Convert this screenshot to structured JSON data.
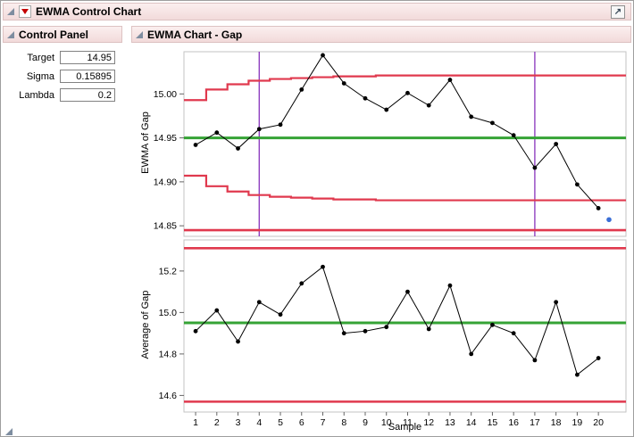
{
  "window": {
    "title": "EWMA Control Chart"
  },
  "icons": {
    "disclosure": "open-triangle",
    "red_triangle_menu": "red-down-triangle",
    "corner_arrow": "↗"
  },
  "colors": {
    "limit_red": "#e0394e",
    "center_green": "#35a335",
    "reference_purple": "#8833bb",
    "highlight_blue": "#3b6fd6",
    "header_pink": "#f5e0e0"
  },
  "control_panel": {
    "title": "Control Panel",
    "fields": [
      {
        "label": "Target",
        "value": "14.95"
      },
      {
        "label": "Sigma",
        "value": "0.15895"
      },
      {
        "label": "Lambda",
        "value": "0.2"
      }
    ]
  },
  "chart_section": {
    "title": "EWMA Chart - Gap"
  },
  "chart_data": [
    {
      "type": "line",
      "name": "ewma-chart",
      "ylabel": "EWMA of Gap",
      "xlabel": "Sample",
      "x": [
        1,
        2,
        3,
        4,
        5,
        6,
        7,
        8,
        9,
        10,
        11,
        12,
        13,
        14,
        15,
        16,
        17,
        18,
        19,
        20
      ],
      "values": [
        14.942,
        14.956,
        14.938,
        14.96,
        14.965,
        15.005,
        15.044,
        15.012,
        14.995,
        14.982,
        15.001,
        14.987,
        15.016,
        14.974,
        14.967,
        14.953,
        14.916,
        14.943,
        14.897,
        14.87
      ],
      "extra_point": {
        "x": 20.5,
        "y": 14.857
      },
      "center_line": 14.95,
      "ucl_steps": [
        14.993,
        15.005,
        15.011,
        15.015,
        15.017,
        15.018,
        15.019,
        15.02,
        15.02,
        15.021,
        15.021,
        15.021,
        15.021,
        15.021,
        15.021,
        15.021,
        15.021,
        15.021,
        15.021,
        15.021
      ],
      "lcl_steps": [
        14.907,
        14.895,
        14.889,
        14.885,
        14.883,
        14.882,
        14.881,
        14.88,
        14.88,
        14.879,
        14.879,
        14.879,
        14.879,
        14.879,
        14.879,
        14.879,
        14.879,
        14.879,
        14.879,
        14.879
      ],
      "lower_line": 14.845,
      "reference_vlines": [
        4,
        17
      ],
      "ylim": [
        14.838,
        15.048
      ],
      "yticks": [
        14.85,
        14.9,
        14.95,
        15.0
      ],
      "ytick_labels": [
        "14.85",
        "14.90",
        "14.95",
        "15.00"
      ]
    },
    {
      "type": "line",
      "name": "average-chart",
      "ylabel": "Average of Gap",
      "xlabel": "Sample",
      "x": [
        1,
        2,
        3,
        4,
        5,
        6,
        7,
        8,
        9,
        10,
        11,
        12,
        13,
        14,
        15,
        16,
        17,
        18,
        19,
        20
      ],
      "values": [
        14.91,
        15.01,
        14.86,
        15.05,
        14.99,
        15.14,
        15.22,
        14.9,
        14.91,
        14.93,
        15.1,
        14.92,
        15.13,
        14.8,
        14.94,
        14.9,
        14.77,
        15.05,
        14.7,
        14.78
      ],
      "center_line": 14.95,
      "ucl": 15.31,
      "lcl": 14.57,
      "ylim": [
        14.52,
        15.35
      ],
      "yticks": [
        14.6,
        14.8,
        15.0,
        15.2
      ],
      "ytick_labels": [
        "14.6",
        "14.8",
        "15.0",
        "15.2"
      ]
    }
  ]
}
